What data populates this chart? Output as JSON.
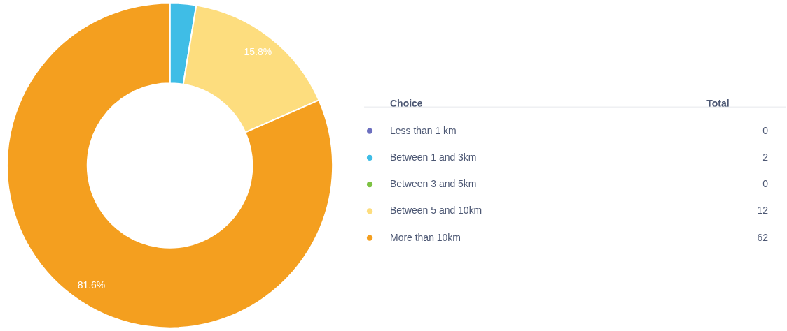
{
  "chart_data": {
    "type": "donut",
    "categories": [
      "Less than 1 km",
      "Between 1 and 3km",
      "Between 3 and 5km",
      "Between 5 and 10km",
      "More than 10km"
    ],
    "values": [
      0,
      2.6,
      0,
      15.8,
      81.6
    ],
    "totals": [
      "0",
      "2",
      "0",
      "12",
      "62"
    ],
    "colors": [
      "#6c6fbf",
      "#3fbde6",
      "#7dc243",
      "#fddd7e",
      "#f49f1f"
    ],
    "value_labels": [
      null,
      null,
      null,
      "15.8%",
      "81.6%"
    ],
    "legend": "right",
    "legend_title": "Choice",
    "annotations": [
      "Total"
    ]
  }
}
